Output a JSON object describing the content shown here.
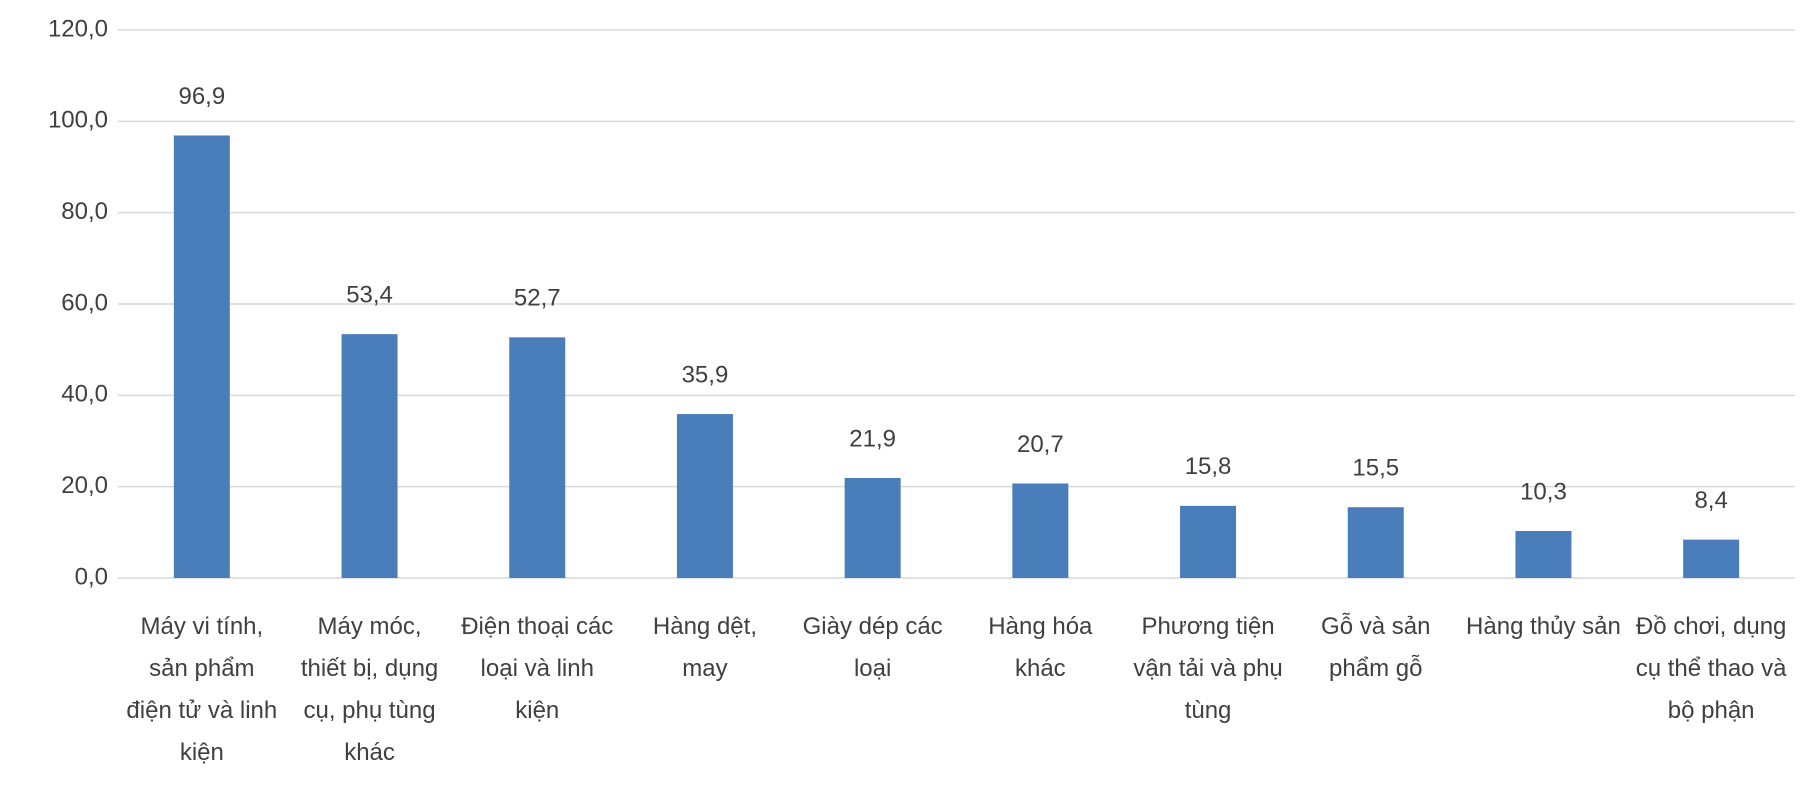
{
  "chart_data": {
    "type": "bar",
    "categories": [
      "Máy vi tính, sản phẩm điện tử và linh kiện",
      "Máy móc, thiết bị, dụng cụ, phụ tùng khác",
      "Điện thoại các loại và linh kiện",
      "Hàng dệt, may",
      "Giày dép các loại",
      "Hàng hóa khác",
      "Phương tiện vận tải và phụ tùng",
      "Gỗ và sản phẩm gỗ",
      "Hàng thủy sản",
      "Đồ chơi, dụng cụ thể thao và bộ phận"
    ],
    "values": [
      96.9,
      53.4,
      52.7,
      35.9,
      21.9,
      20.7,
      15.8,
      15.5,
      10.3,
      8.4
    ],
    "value_labels": [
      "96,9",
      "53,4",
      "52,7",
      "35,9",
      "21,9",
      "20,7",
      "15,8",
      "15,5",
      "10,3",
      "8,4"
    ],
    "color": "#4a7ebb",
    "ylim": [
      0,
      120
    ],
    "yticks": [
      {
        "value": 0,
        "label": "0,0"
      },
      {
        "value": 20,
        "label": "20,0"
      },
      {
        "value": 40,
        "label": "40,0"
      },
      {
        "value": 60,
        "label": "60,0"
      },
      {
        "value": 80,
        "label": "80,0"
      },
      {
        "value": 100,
        "label": "100,0"
      },
      {
        "value": 120,
        "label": "120,0"
      }
    ],
    "grid": true
  }
}
